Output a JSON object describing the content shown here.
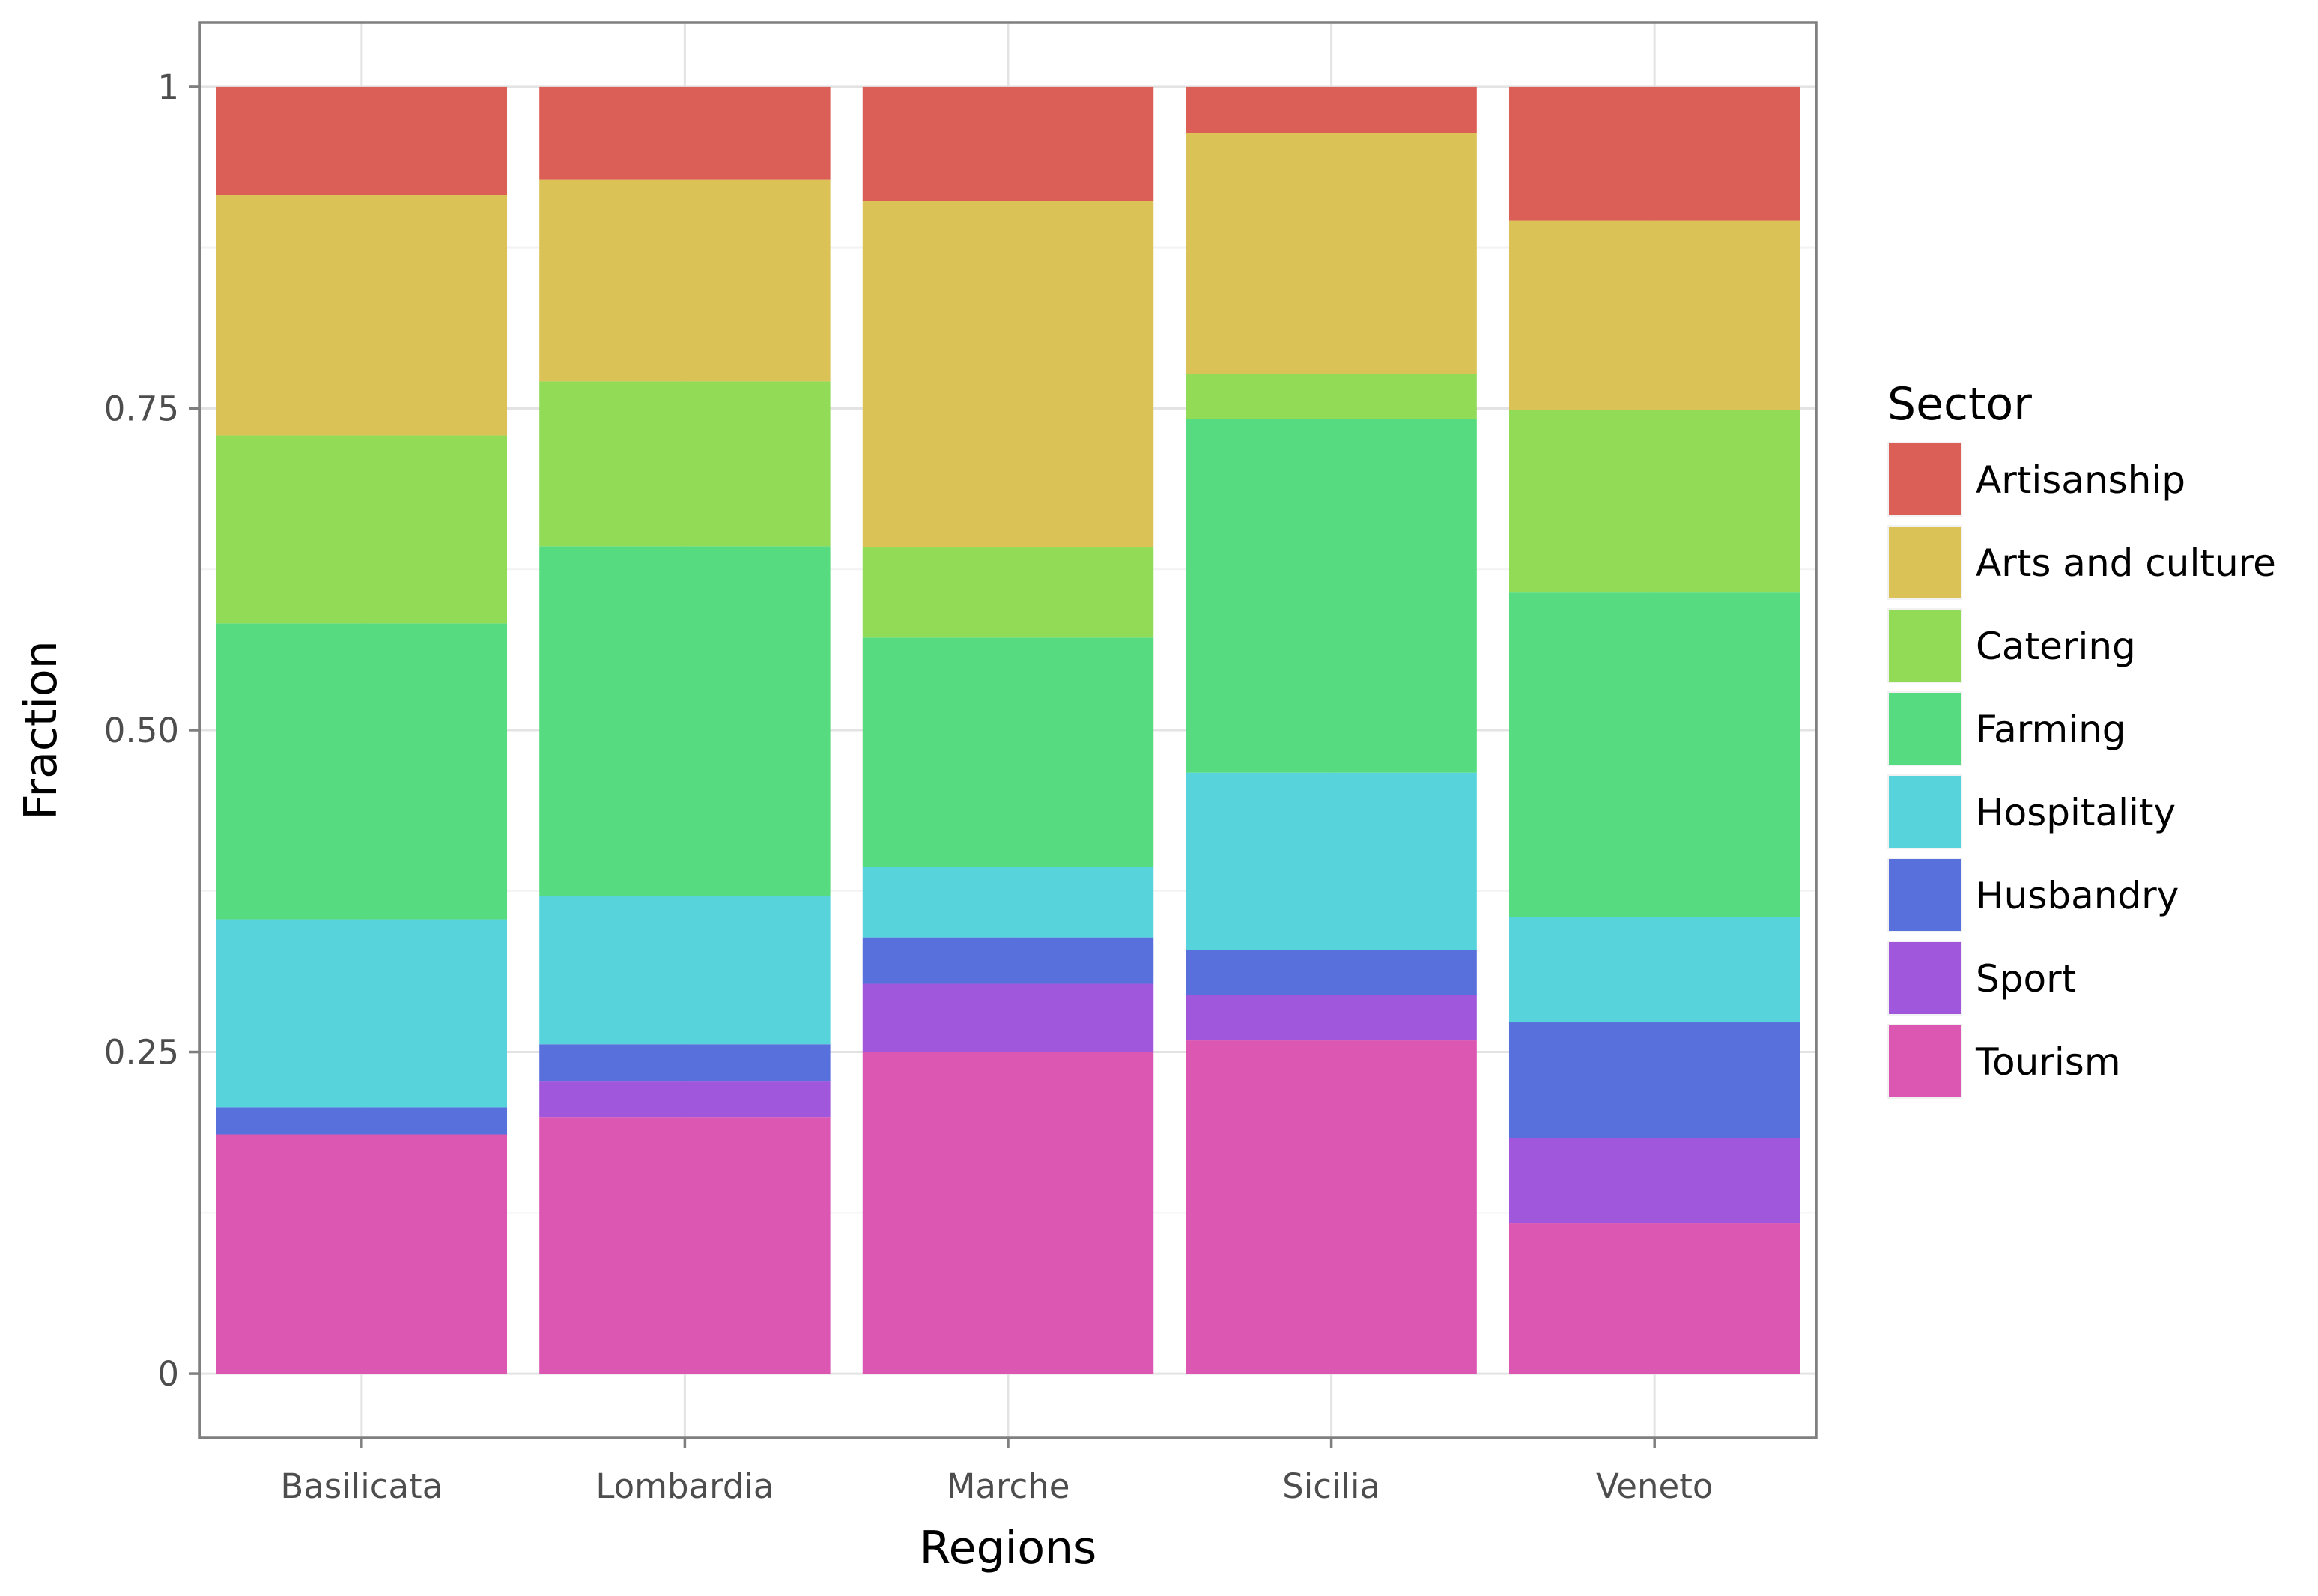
{
  "chart_data": {
    "type": "bar",
    "stacked": true,
    "title": "",
    "xlabel": "Regions",
    "ylabel": "Fraction",
    "ylim": [
      -0.05,
      1.05
    ],
    "yticks": [
      0,
      0.25,
      0.5,
      0.75,
      1
    ],
    "ytick_labels": [
      "0",
      "0.25",
      "0.50",
      "0.75",
      "1"
    ],
    "categories": [
      "Basilicata",
      "Lombardia",
      "Marche",
      "Sicilia",
      "Veneto"
    ],
    "legend_title": "Sector",
    "legend_position": "right",
    "series": [
      {
        "name": "Artisanship",
        "color": "#DB5F57",
        "values": [
          0.084,
          0.072,
          0.089,
          0.036,
          0.104
        ]
      },
      {
        "name": "Arts and culture",
        "color": "#DBC257",
        "values": [
          0.187,
          0.157,
          0.269,
          0.187,
          0.147
        ]
      },
      {
        "name": "Catering",
        "color": "#91DB57",
        "values": [
          0.146,
          0.128,
          0.07,
          0.035,
          0.142
        ]
      },
      {
        "name": "Farming",
        "color": "#57DB80",
        "values": [
          0.23,
          0.272,
          0.178,
          0.275,
          0.252
        ]
      },
      {
        "name": "Hospitality",
        "color": "#57D3DB",
        "values": [
          0.146,
          0.115,
          0.055,
          0.138,
          0.082
        ]
      },
      {
        "name": "Husbandry",
        "color": "#5770DB",
        "values": [
          0.021,
          0.029,
          0.036,
          0.035,
          0.09
        ]
      },
      {
        "name": "Sport",
        "color": "#A157DB",
        "values": [
          0.0,
          0.028,
          0.053,
          0.035,
          0.066
        ]
      },
      {
        "name": "Tourism",
        "color": "#DB57B2",
        "values": [
          0.186,
          0.199,
          0.25,
          0.259,
          0.117
        ]
      }
    ]
  }
}
